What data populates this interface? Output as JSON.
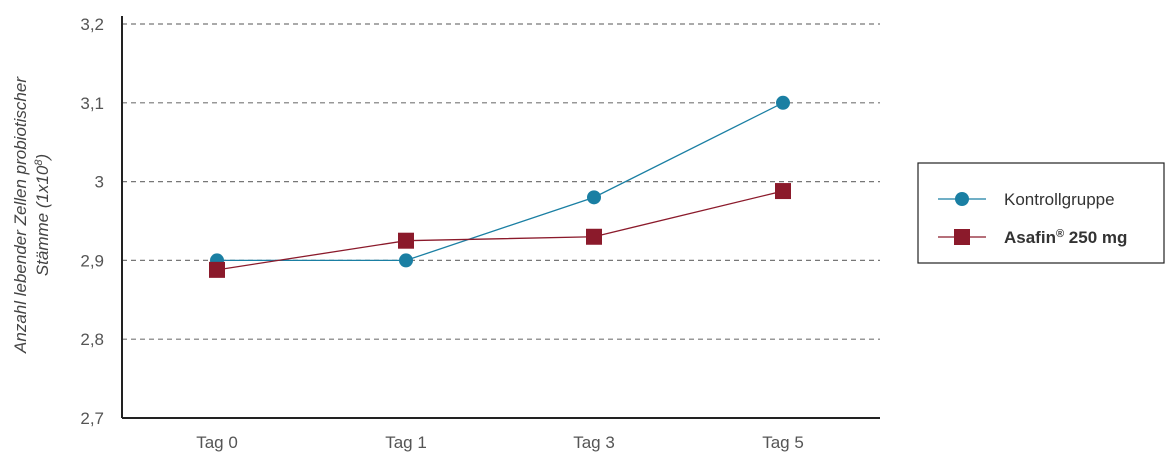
{
  "chart_data": {
    "type": "line",
    "categories": [
      "Tag 0",
      "Tag 1",
      "Tag 3",
      "Tag 5"
    ],
    "ylabel_lines": [
      "Anzahl lebender Zellen probiotischer",
      "Stämme (1x10",
      "8",
      ")"
    ],
    "ylim": [
      2.7,
      3.2
    ],
    "yticks": [
      2.7,
      2.8,
      2.9,
      3.0,
      3.1,
      3.2
    ],
    "ytick_labels": [
      "2,7",
      "2,8",
      "2,9",
      "3",
      "3,1",
      "3,2"
    ],
    "grid": "horizontal dashed",
    "legend_position": "right",
    "series": [
      {
        "name": "Kontrollgruppe",
        "marker": "circle",
        "color": "#1a7fa3",
        "values": [
          2.9,
          2.9,
          2.98,
          3.1
        ]
      },
      {
        "name_main": "Asafin",
        "name_sup": "®",
        "name_rest": " 250 mg",
        "marker": "square",
        "color": "#8b1a2b",
        "values": [
          2.888,
          2.925,
          2.93,
          2.988
        ]
      }
    ]
  }
}
